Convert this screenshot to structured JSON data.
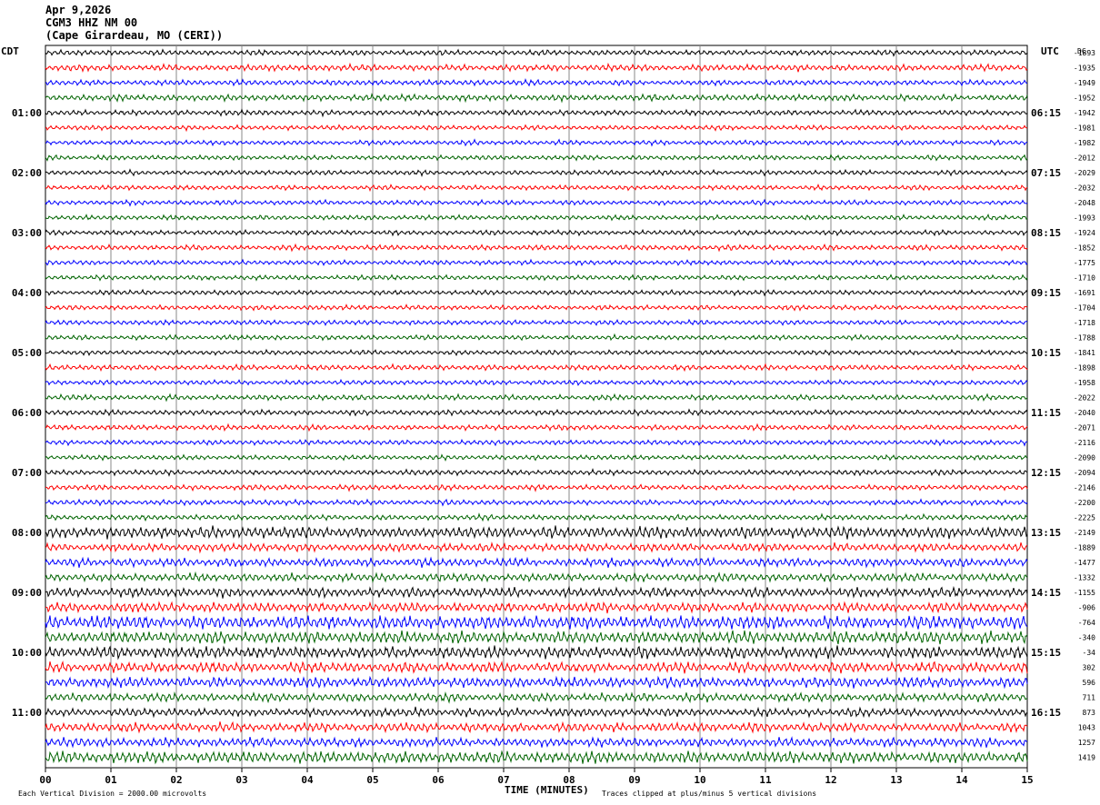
{
  "header": {
    "date": "Apr 9,2026",
    "station": "CGM3 HHZ NM 00",
    "location": "(Cape Girardeau, MO (CERI))"
  },
  "chart_data": {
    "type": "line",
    "title": "",
    "left_tz": "CDT",
    "right_tz": "UTC",
    "dc_label": "DC",
    "xlabel": "TIME (MINUTES)",
    "x_ticks": [
      "00",
      "01",
      "02",
      "03",
      "04",
      "05",
      "06",
      "07",
      "08",
      "09",
      "10",
      "11",
      "12",
      "13",
      "14",
      "15"
    ],
    "xlim": [
      0,
      15
    ],
    "rows_per_hour": 4,
    "n_rows": 48,
    "left_hour_labels": [
      "01:00",
      "02:00",
      "03:00",
      "04:00",
      "05:00",
      "06:00",
      "07:00",
      "08:00",
      "09:00",
      "10:00",
      "11:00"
    ],
    "right_hour_labels": [
      "06:15",
      "07:15",
      "08:15",
      "09:15",
      "10:15",
      "11:15",
      "12:15",
      "13:15",
      "14:15",
      "15:15",
      "16:15"
    ],
    "trace_colors": [
      "#000000",
      "#ff0000",
      "#0000ff",
      "#006400"
    ],
    "row_dc_offsets": [
      -1893,
      -1935,
      -1949,
      -1952,
      -1942,
      -1981,
      -1982,
      -2012,
      -2029,
      -2032,
      -2048,
      -1993,
      -1924,
      -1852,
      -1775,
      -1710,
      -1691,
      -1704,
      -1718,
      -1788,
      -1841,
      -1898,
      -1958,
      -2022,
      -2040,
      -2071,
      -2116,
      -2090,
      -2094,
      -2146,
      -2200,
      -2225,
      -2149,
      -1889,
      -1477,
      -1332,
      -1155,
      -906,
      -764,
      -340,
      -34,
      302,
      596,
      711,
      873,
      1043,
      1257,
      1419
    ],
    "row_activity": [
      1,
      1.2,
      1,
      1.2,
      1,
      0.9,
      0.9,
      0.9,
      0.9,
      0.9,
      0.9,
      0.9,
      0.9,
      1,
      0.9,
      0.9,
      0.9,
      0.9,
      0.9,
      0.9,
      0.9,
      1,
      0.9,
      1,
      1,
      1,
      0.9,
      0.9,
      1,
      1,
      1,
      1,
      2.2,
      1.5,
      1.6,
      1.5,
      1.8,
      1.8,
      2.5,
      2.3,
      2.2,
      1.9,
      2,
      1.6,
      1.6,
      1.7,
      1.7,
      2.2
    ],
    "footer_left": "Each Vertical Division = 2000.00 microvolts",
    "footer_right": "Traces clipped at plus/minus 5 vertical divisions"
  }
}
